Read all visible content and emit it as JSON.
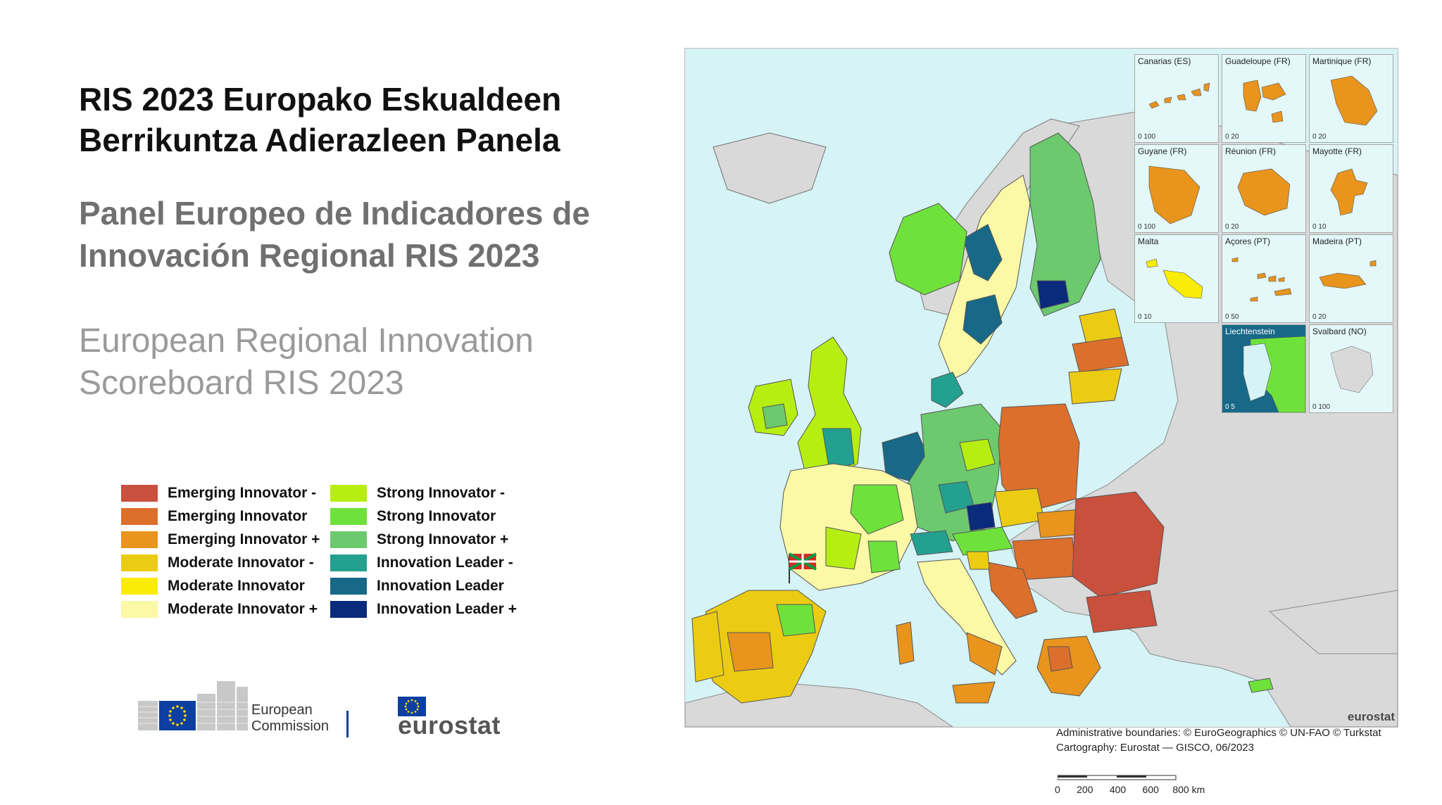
{
  "titles": {
    "basque": "RIS 2023 Europako Eskualdeen Berrikuntza Adierazleen Panela",
    "spanish": "Panel Europeo de Indicadores de Innovación Regional RIS 2023",
    "english": "European Regional Innovation Scoreboard RIS 2023"
  },
  "legend": [
    {
      "label": "Emerging Innovator -",
      "color": "#c9503c"
    },
    {
      "label": "Emerging Innovator",
      "color": "#dc6f2c"
    },
    {
      "label": "Emerging Innovator +",
      "color": "#e8941d"
    },
    {
      "label": "Moderate Innovator -",
      "color": "#eccc12"
    },
    {
      "label": "Moderate Innovator",
      "color": "#faec06"
    },
    {
      "label": "Moderate Innovator +",
      "color": "#fbf8a6"
    },
    {
      "label": "Strong Innovator -",
      "color": "#b6ee12"
    },
    {
      "label": "Strong Innovator",
      "color": "#6ee23a"
    },
    {
      "label": "Strong Innovator +",
      "color": "#6cc96e"
    },
    {
      "label": "Innovation Leader -",
      "color": "#23a08f"
    },
    {
      "label": "Innovation Leader",
      "color": "#176987"
    },
    {
      "label": "Innovation Leader +",
      "color": "#0a2a7c"
    }
  ],
  "logos": {
    "european_commission": "European Commission",
    "eurostat": "eurostat"
  },
  "insets": [
    {
      "label": "Canarias (ES)",
      "scale": "0   100"
    },
    {
      "label": "Guadeloupe (FR)",
      "scale": "0   20"
    },
    {
      "label": "Martinique (FR)",
      "scale": "0   20"
    },
    {
      "label": "Guyane (FR)",
      "scale": "0   100"
    },
    {
      "label": "Réunion (FR)",
      "scale": "0   20"
    },
    {
      "label": "Mayotte (FR)",
      "scale": "0   10"
    },
    {
      "label": "Malta",
      "scale": "0   10"
    },
    {
      "label": "Açores (PT)",
      "scale": "0   50"
    },
    {
      "label": "Madeira (PT)",
      "scale": "0   20"
    },
    {
      "label": "Liechtenstein",
      "scale": "0   5"
    },
    {
      "label": "Svalbard (NO)",
      "scale": "0   100"
    }
  ],
  "map_brand": "eurostat",
  "credits": {
    "boundaries": "Administrative boundaries: © EuroGeographics © UN-FAO © Turkstat",
    "cartography": "Cartography: Eurostat — GISCO, 06/2023"
  },
  "scale_labels": [
    "0",
    "200",
    "400",
    "600",
    "800 km"
  ],
  "colors": {
    "sea": "#d6f3f5",
    "non_eu_land": "#d9d9d9",
    "border": "#555555"
  }
}
